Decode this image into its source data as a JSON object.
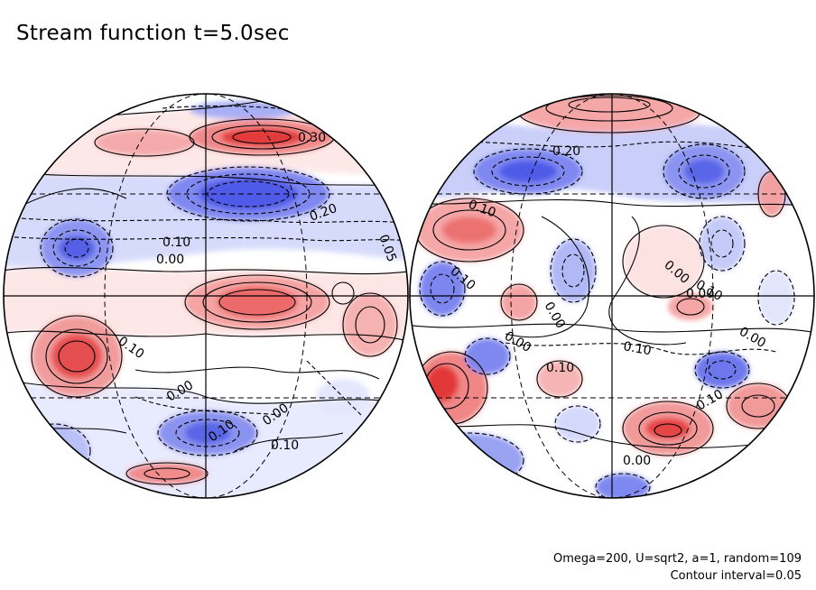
{
  "title": "Stream function t=5.0sec",
  "footer": {
    "params": "Omega=200, U=sqrt2, a=1, random=109",
    "contour_interval": "Contour interval=0.05"
  },
  "colors": {
    "positive": "#e8393a",
    "negative": "#4754e8",
    "outline": "#000000"
  },
  "left_hemisphere": {
    "contour_labels": [
      "0.30",
      "0.20",
      "0.10",
      "0.00",
      "0.05",
      "0.10",
      "0.00",
      "0.10",
      "0.00",
      "0.10"
    ]
  },
  "right_hemisphere": {
    "contour_labels": [
      "0.20",
      "0.10",
      "0.10",
      "0.00",
      "0.00",
      "0.10",
      "0.00",
      "0.10",
      "0.00",
      "0.10",
      "0.00",
      "0.10",
      "0.00"
    ]
  }
}
